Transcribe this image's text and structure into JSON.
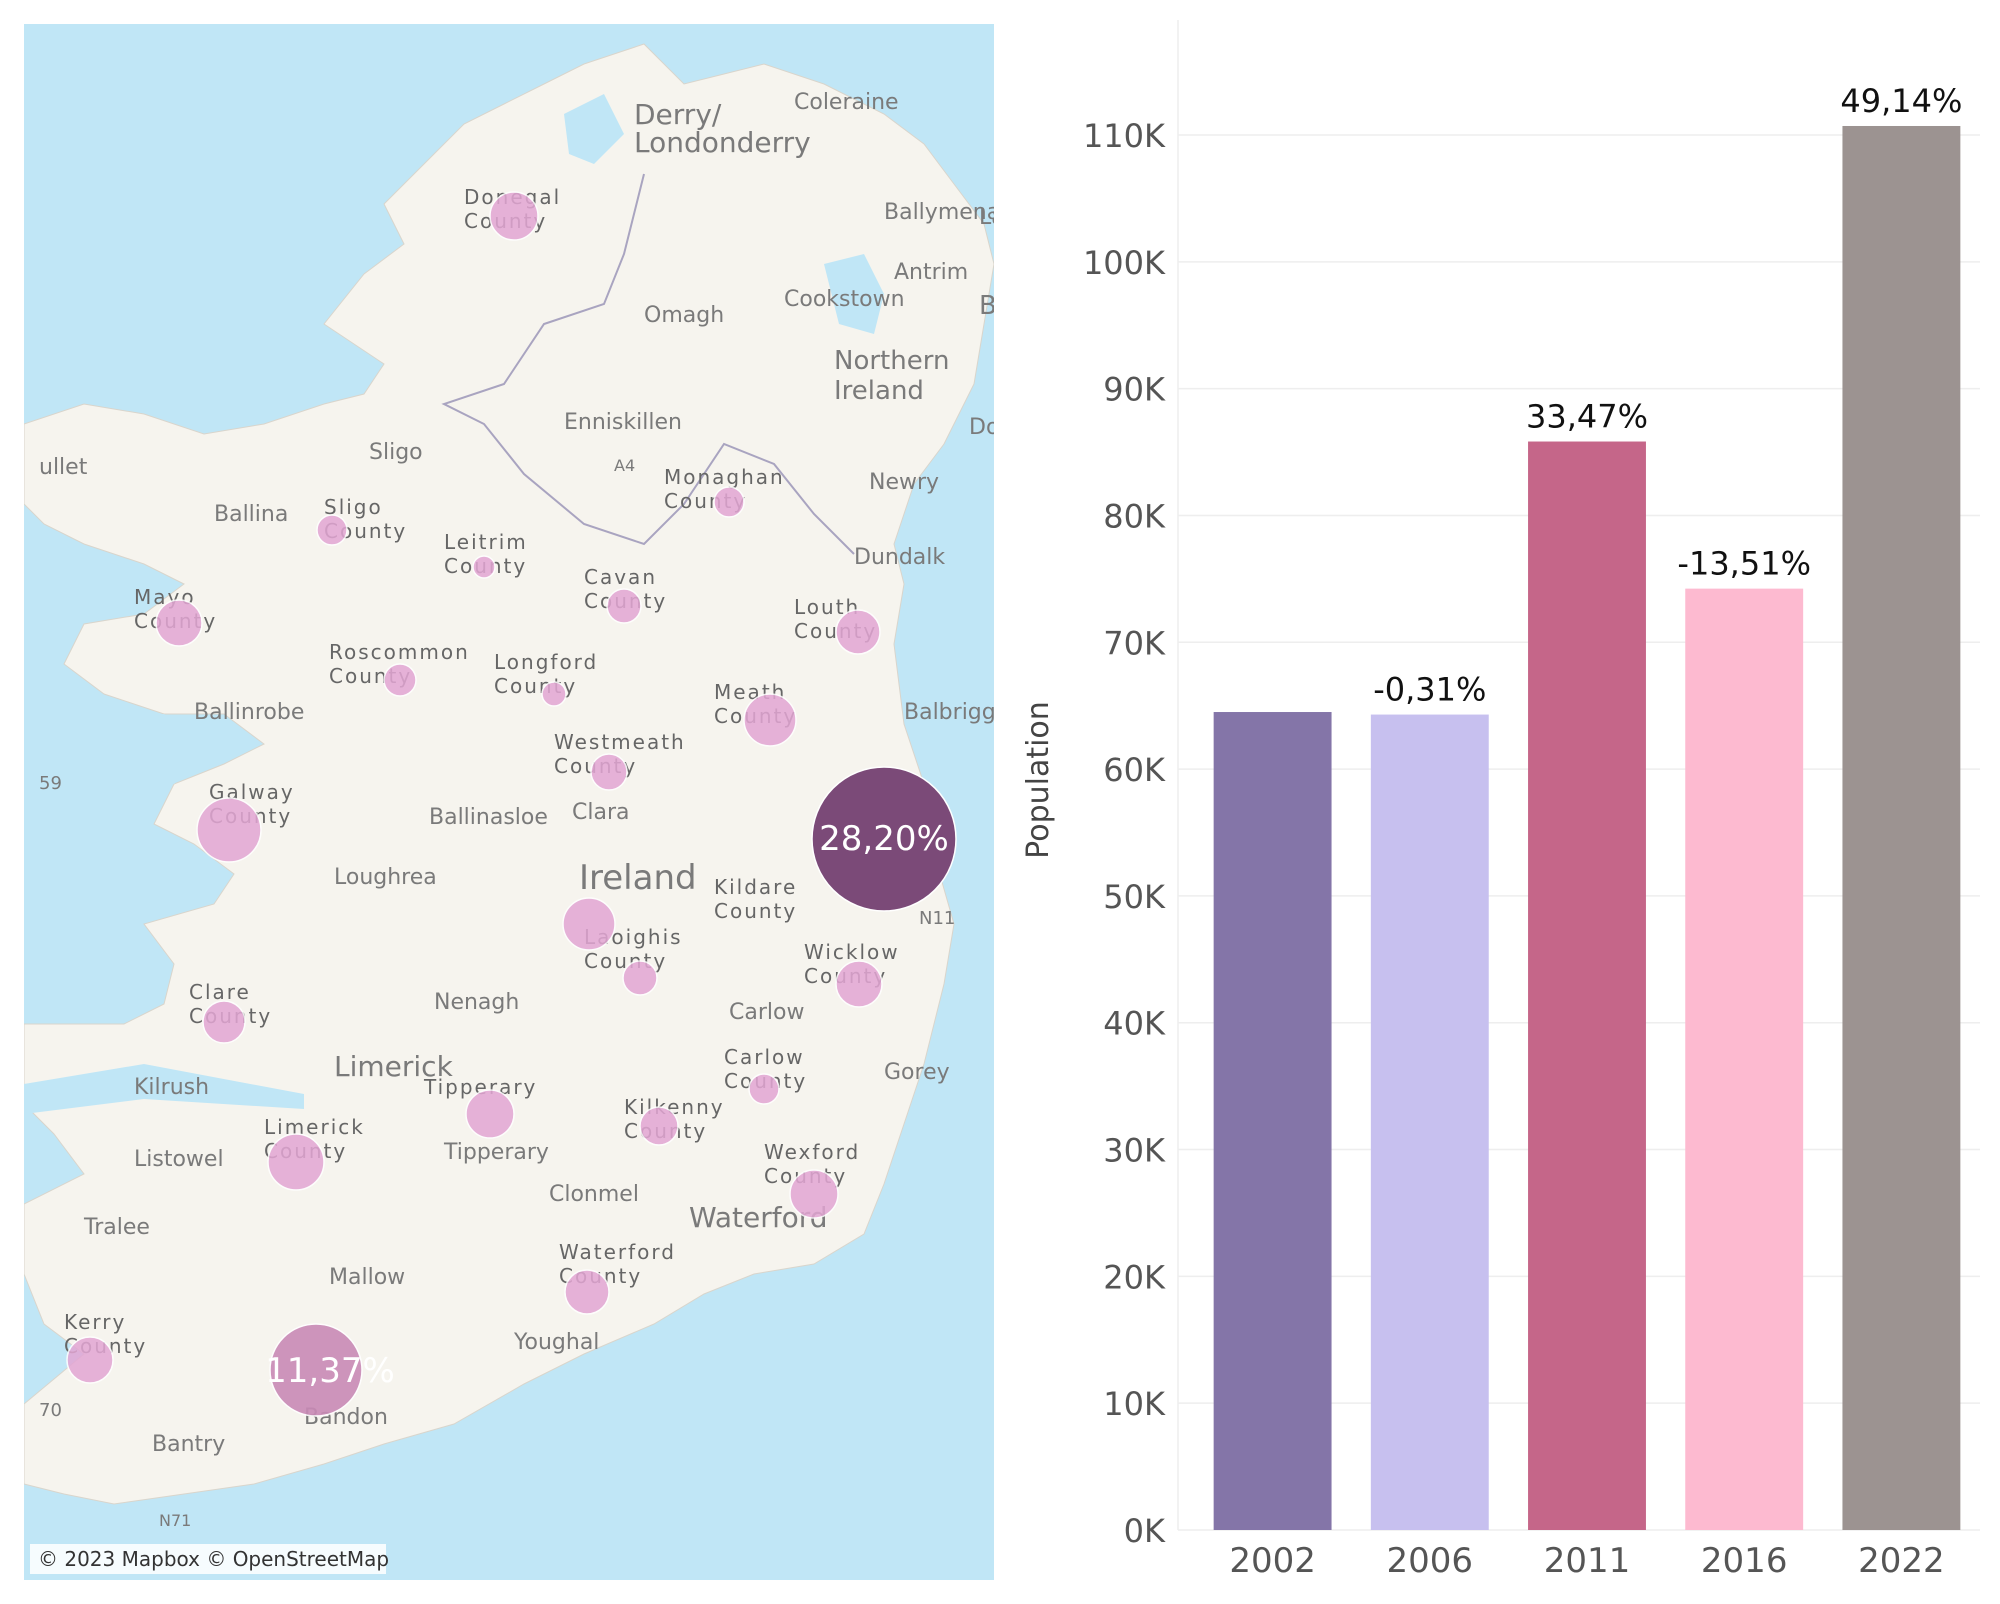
{
  "map": {
    "attribution": "© 2023 Mapbox © OpenStreetMap",
    "colors": {
      "sea": "#c0e6f6",
      "land": "#f6f4ee",
      "bubble": "#e3a6d4",
      "bubble_dark": "#7b4a78",
      "bubble_mid": "#c98ab6"
    },
    "place_labels": [
      {
        "text": "Derry/"
      },
      {
        "text": "Londonderry"
      },
      {
        "text": "Coleraine"
      },
      {
        "text": "Ballymena"
      },
      {
        "text": "Lar"
      },
      {
        "text": "Antrim"
      },
      {
        "text": "Belfas"
      },
      {
        "text": "Omagh"
      },
      {
        "text": "Cookstown"
      },
      {
        "text": "Northern"
      },
      {
        "text": "Ireland"
      },
      {
        "text": "Enniskillen"
      },
      {
        "text": "A4"
      },
      {
        "text": "Dow"
      },
      {
        "text": "Sligo"
      },
      {
        "text": "ullet"
      },
      {
        "text": "Newry"
      },
      {
        "text": "Ballina"
      },
      {
        "text": "Dundalk"
      },
      {
        "text": "Ballinrobe"
      },
      {
        "text": "Balbriggan"
      },
      {
        "text": "59"
      },
      {
        "text": "Clara"
      },
      {
        "text": "Ballinasloe"
      },
      {
        "text": "Loughrea"
      },
      {
        "text": "Ireland"
      },
      {
        "text": "N11"
      },
      {
        "text": "Nenagh"
      },
      {
        "text": "Carlow"
      },
      {
        "text": "Gorey"
      },
      {
        "text": "Limerick"
      },
      {
        "text": "Kilrush"
      },
      {
        "text": "Tipperary"
      },
      {
        "text": "Listowel"
      },
      {
        "text": "Clonmel"
      },
      {
        "text": "Waterford"
      },
      {
        "text": "Tralee"
      },
      {
        "text": "Mallow"
      },
      {
        "text": "Youghal"
      },
      {
        "text": "Bandon"
      },
      {
        "text": "70"
      },
      {
        "text": "Bantry"
      },
      {
        "text": "N71"
      }
    ],
    "county_labels": [
      {
        "line1": "Donegal",
        "line2": "County"
      },
      {
        "line1": "Sligo",
        "line2": "County"
      },
      {
        "line1": "Leitrim",
        "line2": "County"
      },
      {
        "line1": "Monaghan",
        "line2": "County"
      },
      {
        "line1": "Cavan",
        "line2": "County"
      },
      {
        "line1": "Mayo",
        "line2": "County"
      },
      {
        "line1": "Louth",
        "line2": "County"
      },
      {
        "line1": "Roscommon",
        "line2": "County"
      },
      {
        "line1": "Longford",
        "line2": "County"
      },
      {
        "line1": "Meath",
        "line2": "County"
      },
      {
        "line1": "Westmeath",
        "line2": "County"
      },
      {
        "line1": "Galway",
        "line2": "County"
      },
      {
        "line1": "Kildare",
        "line2": "County"
      },
      {
        "line1": "Laoighis",
        "line2": "County"
      },
      {
        "line1": "Wicklow",
        "line2": "County"
      },
      {
        "line1": "Clare",
        "line2": "County"
      },
      {
        "line1": "Carlow",
        "line2": "County"
      },
      {
        "line1": "Tipperary",
        "line2": ""
      },
      {
        "line1": "Kilkenny",
        "line2": "County"
      },
      {
        "line1": "Limerick",
        "line2": "County"
      },
      {
        "line1": "Wexford",
        "line2": "County"
      },
      {
        "line1": "Waterford",
        "line2": "County"
      },
      {
        "line1": "Kerry",
        "line2": "County"
      }
    ],
    "bubble_labels": [
      "28,20%",
      "11,37%"
    ]
  },
  "chart_data": {
    "type": "bar",
    "categories": [
      "2002",
      "2006",
      "2011",
      "2016",
      "2022"
    ],
    "values": [
      64500,
      64300,
      85830,
      74230,
      110710
    ],
    "data_labels": [
      "",
      "-0,31%",
      "33,47%",
      "-13,51%",
      "49,14%"
    ],
    "colors": [
      "#8475a8",
      "#c7c0ef",
      "#c56689",
      "#fdbad0",
      "#9c9391"
    ],
    "ylabel": "Population",
    "xlabel": "",
    "ylim": [
      0,
      110000
    ],
    "yticks": [
      0,
      10000,
      20000,
      30000,
      40000,
      50000,
      60000,
      70000,
      80000,
      90000,
      100000,
      110000
    ],
    "ytick_labels": [
      "0K",
      "10K",
      "20K",
      "30K",
      "40K",
      "50K",
      "60K",
      "70K",
      "80K",
      "90K",
      "100K",
      "110K"
    ],
    "grid": true,
    "legend": "none"
  }
}
